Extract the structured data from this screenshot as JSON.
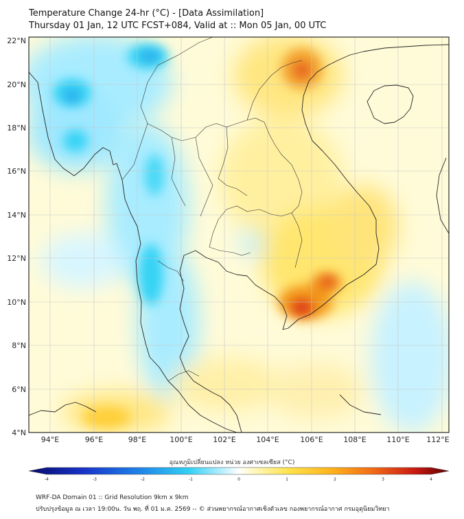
{
  "title_line1": "Temperature Change 24-hr (°C) - [Data Assimilation]",
  "title_line2": "Thursday 01 Jan, 12 UTC FCST+084, Valid at :: Mon 05 Jan, 00 UTC",
  "lat_labels": [
    "22°N",
    "20°N",
    "18°N",
    "16°N",
    "14°N",
    "12°N",
    "10°N",
    "8°N",
    "6°N",
    "4°N"
  ],
  "lon_labels": [
    "94°E",
    "96°E",
    "98°E",
    "100°E",
    "102°E",
    "104°E",
    "106°E",
    "108°E",
    "110°E",
    "112°E"
  ],
  "colorbar": {
    "title": "อุณหภูมิเปลี่ยนแปลง หน่วย องศาเซลเซียส (°C)",
    "ticks": [
      "-4",
      "-3",
      "-2",
      "-1",
      "0",
      "1",
      "2",
      "3",
      "4"
    ],
    "min": -4,
    "max": 4
  },
  "footer_line1": "WRF-DA Domain 01 :: Grid Resolution 9km x 9km",
  "footer_line2": "ปรับปรุงข้อมูล ณ เวลา 19:00น. วัน พฤ. ที่ 01 ม.ค. 2569 -- © ส่วนพยากรณ์อากาศเชิงตัวเลข กองพยากรณ์อากาศ กรมอุตุนิยมวิทยา",
  "colors": {
    "field_base": "#fffbd8",
    "cold_light": "#a9ecff",
    "cold": "#35d3f4",
    "cold_strong": "#29a7ea",
    "warm_light": "#ffef9a",
    "warm": "#ffd72e",
    "hot": "#f39a1c",
    "hottest": "#dd3b17",
    "coast": "#222222",
    "border": "#333333"
  }
}
